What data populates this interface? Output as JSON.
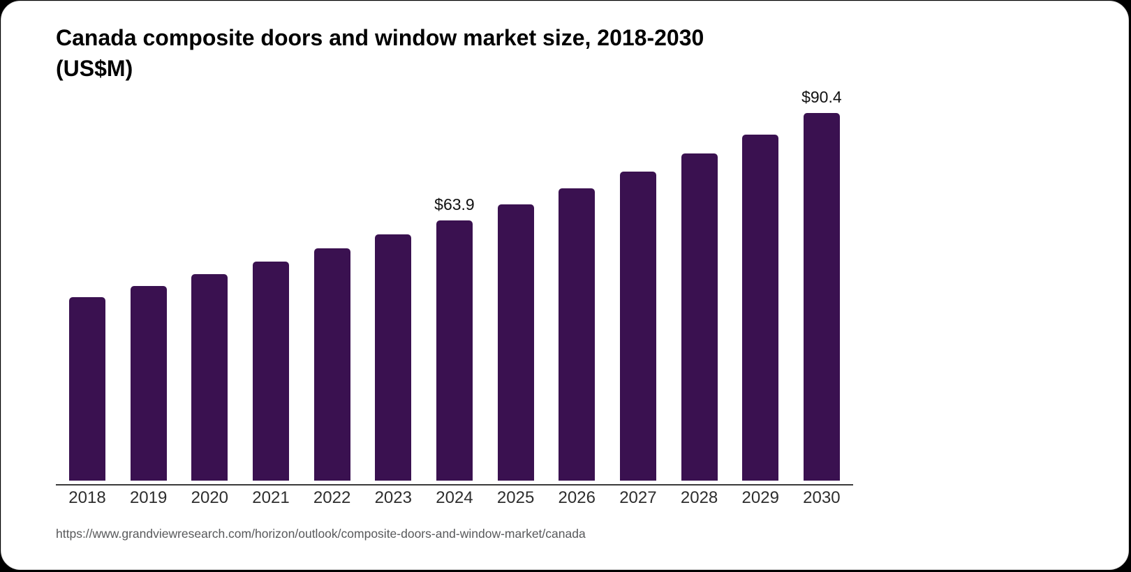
{
  "window": {
    "background_outside": "#000000",
    "card_background": "#ffffff"
  },
  "header": {
    "title_line1": "Canada composite doors and window market size, 2018-2030",
    "title_line2": "(US$M)"
  },
  "source": {
    "url_text": "https://www.grandviewresearch.com/horizon/outlook/composite-doors-and-window-market/canada"
  },
  "chart_data": {
    "type": "bar",
    "title": "Canada composite doors and window market size, 2018-2030 (US$M)",
    "categories": [
      "2018",
      "2019",
      "2020",
      "2021",
      "2022",
      "2023",
      "2024",
      "2025",
      "2026",
      "2027",
      "2028",
      "2029",
      "2030"
    ],
    "values": [
      45.1,
      47.8,
      50.7,
      53.8,
      57.2,
      60.5,
      63.9,
      67.9,
      71.9,
      76.0,
      80.5,
      85.1,
      90.4
    ],
    "data_labels": [
      "",
      "",
      "",
      "",
      "",
      "",
      "$63.9",
      "",
      "",
      "",
      "",
      "",
      "$90.4"
    ],
    "labeled_points": [
      {
        "category": "2024",
        "label": "$63.9",
        "value": 63.9
      },
      {
        "category": "2030",
        "label": "$90.4",
        "value": 90.4
      }
    ],
    "xlabel": "",
    "ylabel": "",
    "ylim": [
      0,
      95
    ],
    "grid": false,
    "legend": false,
    "bar_color": "#3a1150",
    "axis_line_color": "#3a3a3a",
    "tick_label_color": "#2e2e2e",
    "data_label_color": "#111111"
  }
}
